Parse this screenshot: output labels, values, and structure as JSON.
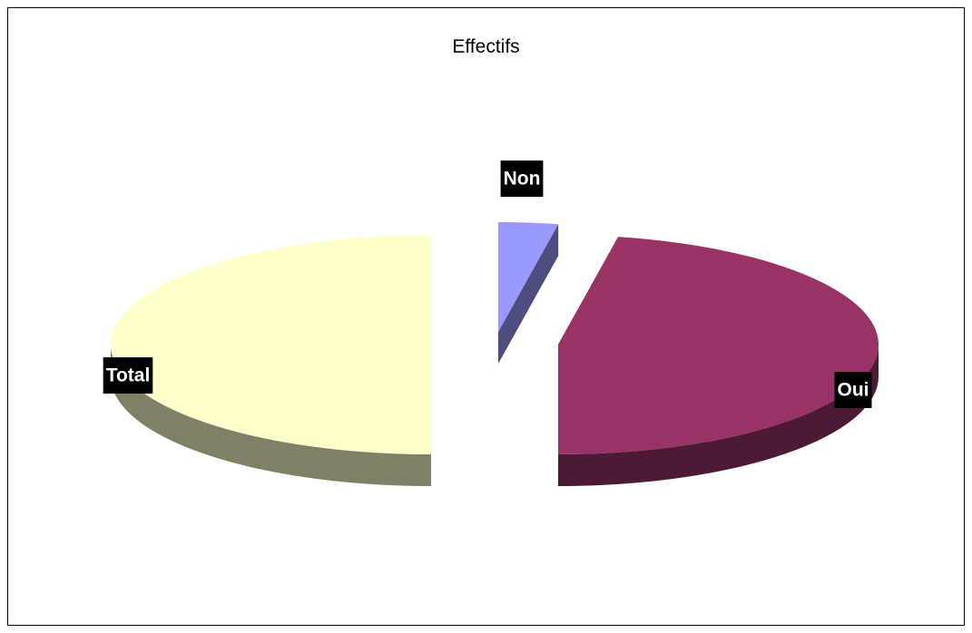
{
  "chart_data": {
    "type": "pie",
    "style": "3d-exploded",
    "title": "Effectifs",
    "slices": [
      {
        "label": "Non",
        "value": 3,
        "color": "#9999ff",
        "side_color": "#4d4d80"
      },
      {
        "label": "Oui",
        "value": 47,
        "color": "#993366",
        "side_color": "#4d1a33"
      },
      {
        "label": "Total",
        "value": 50,
        "color": "#ffffcc",
        "side_color": "#808066"
      }
    ],
    "label_style": {
      "background": "#000000",
      "text_color": "#ffffff"
    }
  }
}
